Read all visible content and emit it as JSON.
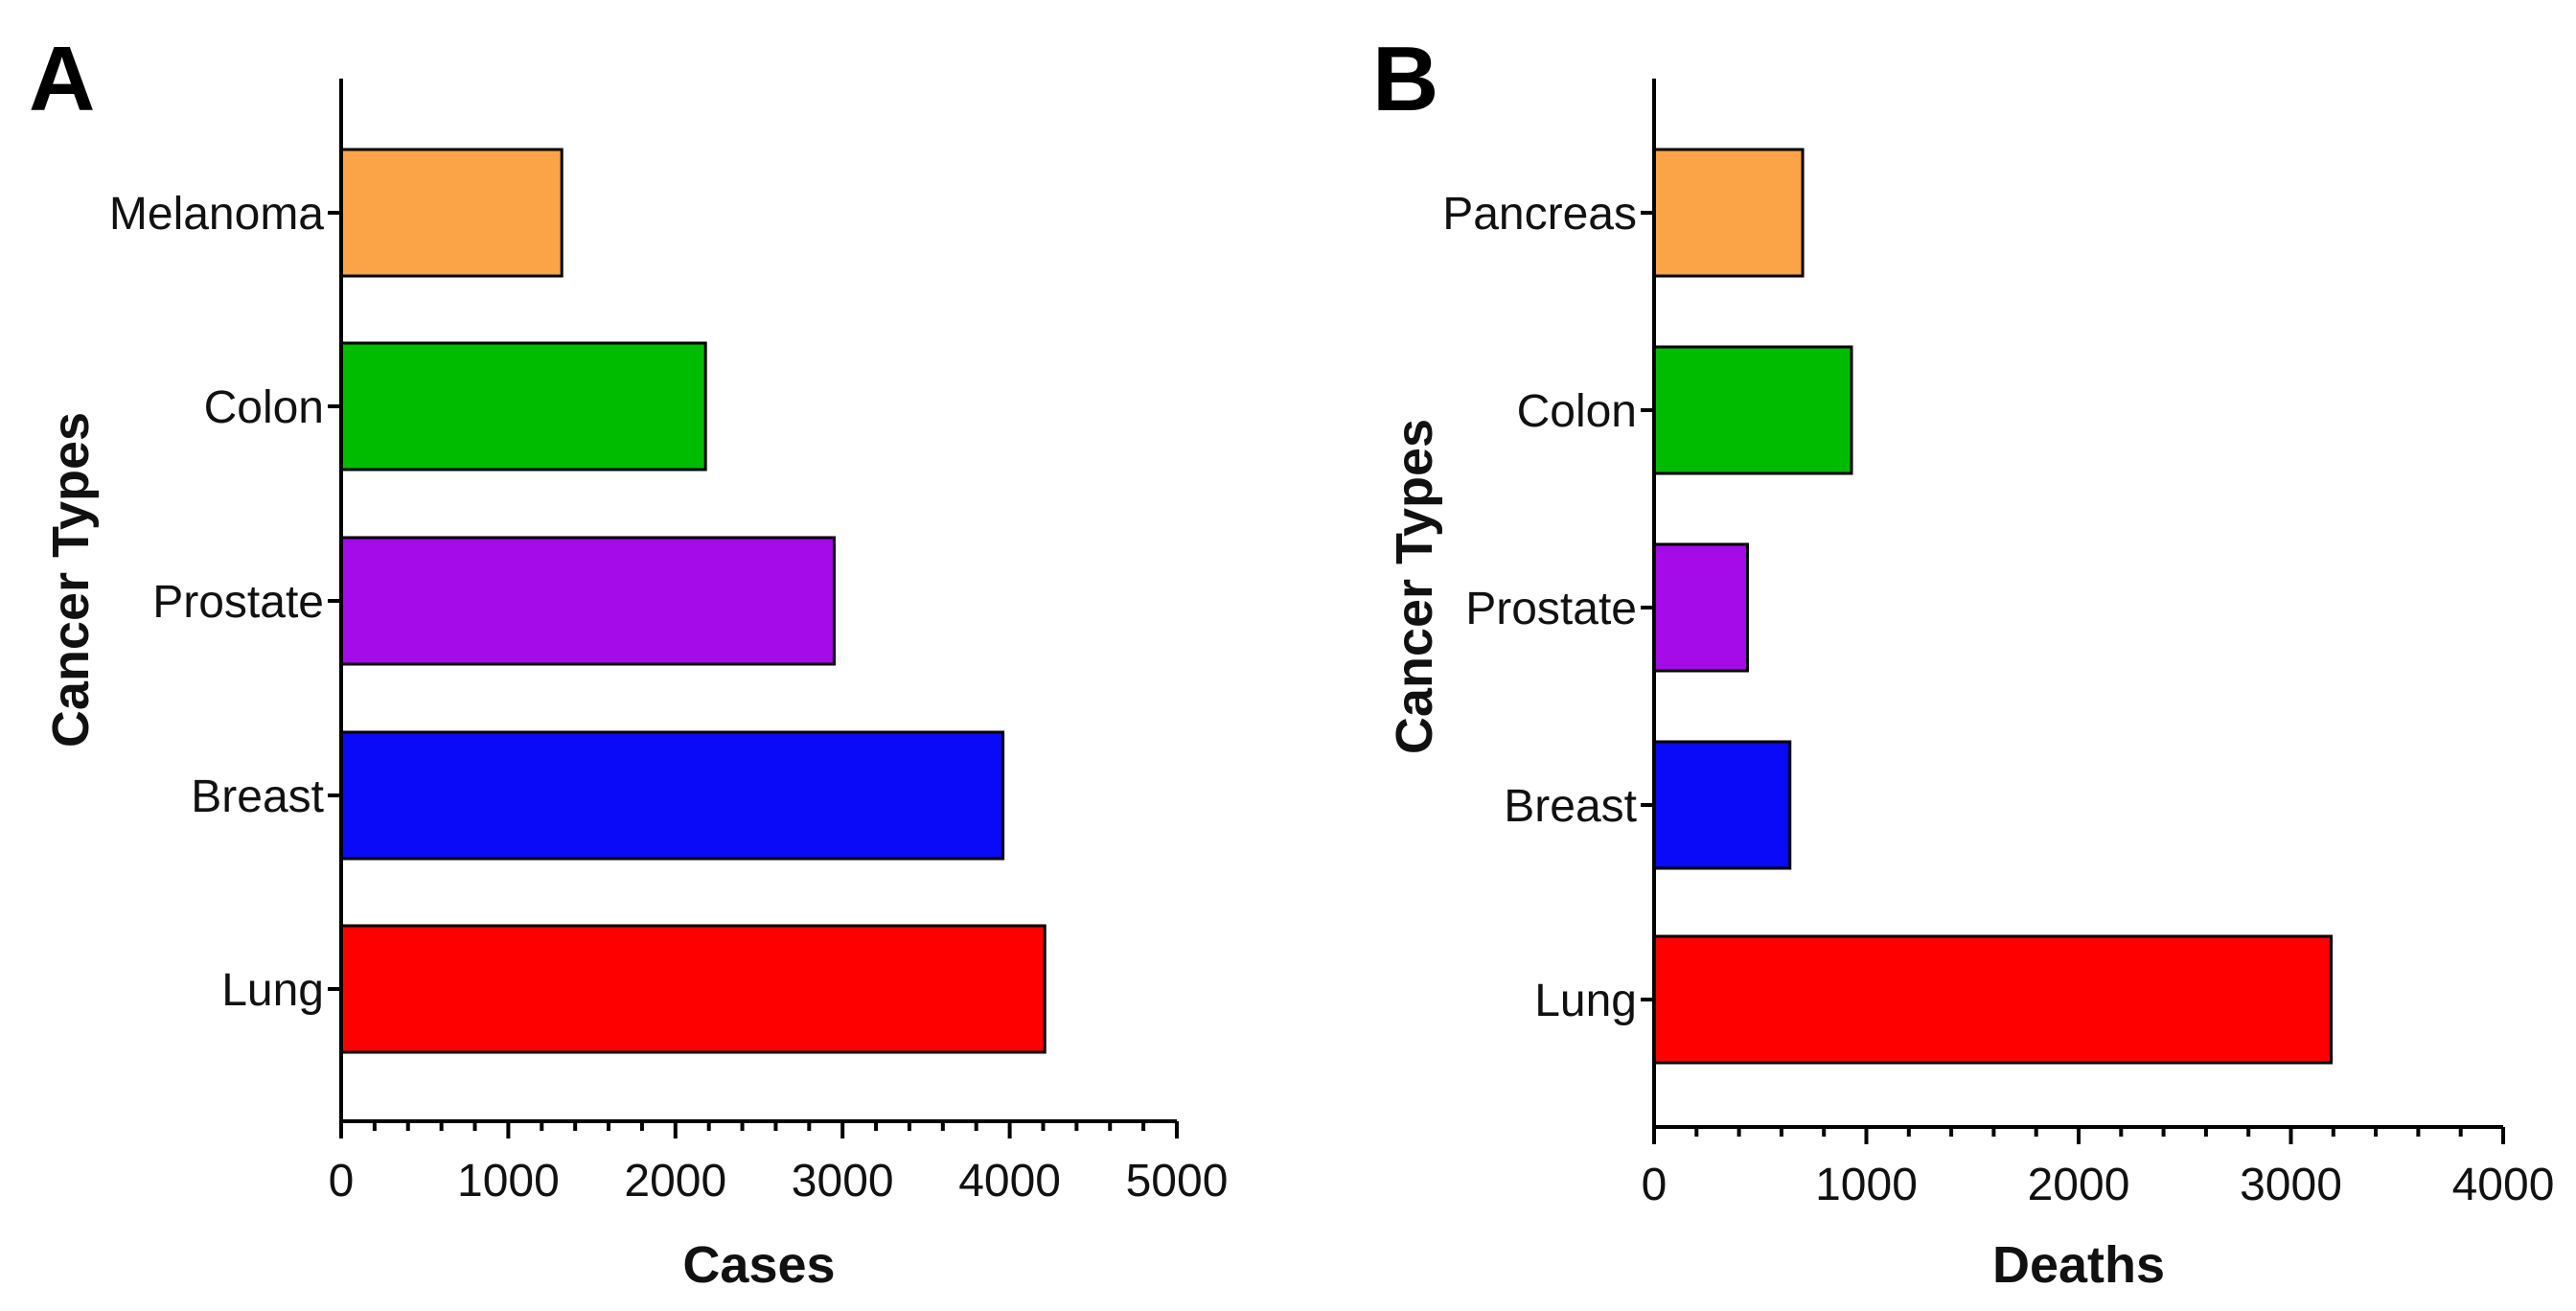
{
  "chart_data": [
    {
      "type": "bar",
      "orientation": "horizontal",
      "panel_label": "A",
      "categories": [
        "Melanoma",
        "Colon",
        "Prostate",
        "Breast",
        "Lung"
      ],
      "values": [
        1320,
        2180,
        2950,
        3960,
        4210
      ],
      "colors": [
        "#FAA347",
        "#00BC00",
        "#A40BE8",
        "#0A0AF8",
        "#FF0000"
      ],
      "xlabel": "Cases",
      "ylabel": "Cancer Types",
      "xlim": [
        0,
        5000
      ],
      "xticks": [
        "0",
        "1000",
        "2000",
        "3000",
        "4000",
        "5000"
      ],
      "grid": false
    },
    {
      "type": "bar",
      "orientation": "horizontal",
      "panel_label": "B",
      "categories": [
        "Pancreas",
        "Colon",
        "Prostate",
        "Breast",
        "Lung"
      ],
      "values": [
        700,
        930,
        440,
        640,
        3190
      ],
      "colors": [
        "#FAA347",
        "#00BC00",
        "#A40BE8",
        "#0A0AF8",
        "#FF0000"
      ],
      "xlabel": "Deaths",
      "ylabel": "Cancer Types",
      "xlim": [
        0,
        4000
      ],
      "xticks": [
        "0",
        "1000",
        "2000",
        "3000",
        "4000"
      ],
      "grid": false
    }
  ]
}
